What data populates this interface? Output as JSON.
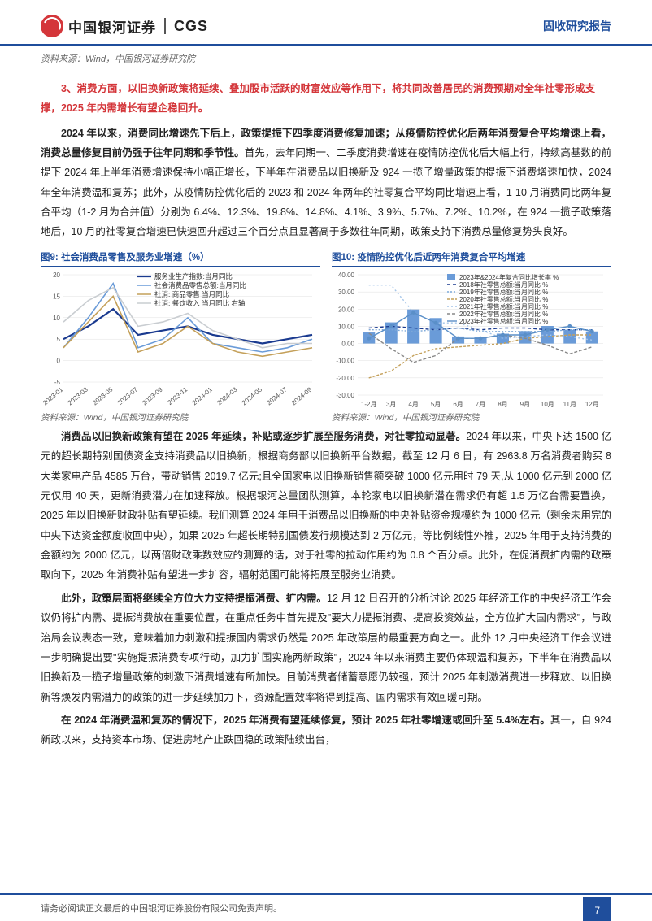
{
  "header": {
    "logo_cn": "中国银河证券",
    "logo_en": "CGS",
    "report_type": "固收研究报告"
  },
  "source_top": "资料来源：Wind，中国银河证券研究院",
  "section3": "3、消费方面，以旧换新政策将延续、叠加股市活跃的财富效应等作用下，将共同改善居民的消费预期对全年社零形成支撑，2025 年内需增长有望企稳回升。",
  "p1_bold": "2024 年以来，消费同比增速先下后上，政策提振下四季度消费修复加速；从疫情防控优化后两年消费复合平均增速上看，消费总量修复目前仍强于往年同期和季节性。",
  "p1_rest": "首先，去年同期一、二季度消费增速在疫情防控优化后大幅上行，持续高基数的前提下 2024 年上半年消费增速保持小幅正增长，下半年在消费品以旧换新及 924 一揽子增量政策的提振下消费增速加快，2024 年全年消费温和复苏；此外，从疫情防控优化后的 2023 和 2024 年两年的社零复合平均同比增速上看，1-10 月消费同比两年复合平均（1-2 月为合并值）分别为 6.4%、12.3%、19.8%、14.8%、4.1%、3.9%、5.7%、7.2%、10.2%，在 924 一揽子政策落地后，10 月的社零复合增速已快速回升超过三个百分点且显著高于多数往年同期，政策支持下消费总量修复势头良好。",
  "chart9": {
    "title": "图9: 社会消费品零售及服务业增速（%）",
    "type": "line",
    "background_color": "#ffffff",
    "grid_color": "#e0e0e0",
    "ylim": [
      -5,
      20
    ],
    "yticks": [
      -5,
      0,
      5,
      10,
      15,
      20
    ],
    "xlabels": [
      "2023-01",
      "2023-03",
      "2023-05",
      "2023-07",
      "2023-09",
      "2023-11",
      "2024-01",
      "2024-03",
      "2024-05",
      "2024-07",
      "2024-09"
    ],
    "series": [
      {
        "name": "服务业生产指数:当月同比",
        "color": "#1a3a8f",
        "width": 2.2,
        "data": [
          5,
          8,
          12,
          6,
          7,
          8,
          6,
          5,
          4,
          5,
          6
        ]
      },
      {
        "name": "社会消费品零售总额:当月同比",
        "color": "#6a9bd8",
        "width": 1.6,
        "data": [
          3,
          10,
          18,
          3,
          5,
          10,
          4,
          3,
          2,
          3,
          5
        ]
      },
      {
        "name": "社消: 商品零售 当月同比",
        "color": "#c4a05a",
        "width": 1.6,
        "data": [
          3,
          9,
          15,
          2,
          4,
          8,
          4,
          2,
          1,
          2,
          3
        ]
      },
      {
        "name": "社消: 餐饮收入 当月同比 右轴",
        "color": "#c9cdd1",
        "width": 1.6,
        "data": [
          9,
          14,
          17,
          8,
          9,
          11,
          7,
          5,
          3,
          4,
          4
        ]
      }
    ],
    "axis_fontsize": 8,
    "legend_fontsize": 8.5,
    "source": "资料来源：Wind，中国银河证券研究院"
  },
  "chart10": {
    "title": "图10: 疫情防控优化后近两年消费复合平均增速",
    "type": "combo",
    "background_color": "#ffffff",
    "grid_color": "#e0e0e0",
    "ylim": [
      -30,
      40
    ],
    "yticks": [
      -30,
      -20,
      -10,
      0,
      10,
      20,
      30,
      40
    ],
    "xlabels": [
      "1-2月",
      "3月",
      "4月",
      "5月",
      "6月",
      "7月",
      "8月",
      "9月",
      "10月",
      "11月",
      "12月"
    ],
    "bars": {
      "name": "2023年&2024年复合同比增长率 %",
      "color": "#6a9bd8",
      "data": [
        6.4,
        12.3,
        19.8,
        14.8,
        4.1,
        3.9,
        5.7,
        7.2,
        10.2,
        8,
        7
      ]
    },
    "lines": [
      {
        "name": "2018年社零售总额:当月同比 %",
        "color": "#1a3a8f",
        "dash": "4 3",
        "data": [
          9,
          10,
          9,
          8,
          9,
          8,
          9,
          9,
          8,
          8,
          8
        ]
      },
      {
        "name": "2019年社零售总额:当月同比 %",
        "color": "#7ca8d8",
        "dash": "2 2",
        "data": [
          8,
          8,
          7,
          8,
          9,
          7,
          7,
          7,
          7,
          8,
          8
        ]
      },
      {
        "name": "2020年社零售总额:当月同比 %",
        "color": "#c4a05a",
        "dash": "3 2",
        "data": [
          -20,
          -16,
          -7,
          -3,
          -2,
          -1,
          0,
          3,
          4,
          5,
          5
        ]
      },
      {
        "name": "2021年社零售总额:当月同比 %",
        "color": "#a3c4e8",
        "dash": "2 3",
        "data": [
          34,
          34,
          18,
          12,
          12,
          8,
          3,
          4,
          5,
          4,
          2
        ]
      },
      {
        "name": "2022年社零售总额:当月同比 %",
        "color": "#888",
        "dash": "4 2",
        "data": [
          6,
          -3,
          -11,
          -7,
          3,
          3,
          5,
          3,
          -1,
          -6,
          -2
        ]
      },
      {
        "name": "2023年社零售总额:当月同比 %",
        "color": "#5a8fc8",
        "dash": "",
        "data": [
          3,
          10,
          18,
          12,
          3,
          3,
          5,
          5,
          8,
          10,
          7
        ],
        "marker": true
      }
    ],
    "axis_fontsize": 8,
    "legend_fontsize": 8,
    "source": "资料来源：Wind，中国银河证券研究院"
  },
  "p2_bold": "消费品以旧换新政策有望在 2025 年延续，补贴或逐步扩展至服务消费，对社零拉动显著。",
  "p2_rest": "2024 年以来，中央下达 1500 亿元的超长期特别国债资金支持消费品以旧换新，根据商务部以旧换新平台数据，截至 12 月 6 日，有 2963.8 万名消费者购买 8 大类家电产品 4585 万台，带动销售 2019.7 亿元;且全国家电以旧换新销售额突破 1000 亿元用时 79 天,从 1000 亿元到 2000 亿元仅用 40 天，更新消费潜力在加速释放。根据银河总量团队测算，本轮家电以旧换新潜在需求仍有超 1.5 万亿台需要置换，2025 年以旧换新财政补贴有望延续。我们测算 2024 年用于消费品以旧换新的中央补贴资金规模约为 1000 亿元（剩余未用完的中央下达资金额度收回中央），如果 2025 年超长期特别国债发行规模达到 2 万亿元，等比例线性外推，2025 年用于支持消费的金额约为 2000 亿元，以两倍财政乘数效应的测算的话，对于社零的拉动作用约为 0.8 个百分点。此外，在促消费扩内需的政策取向下，2025 年消费补贴有望进一步扩容，辐射范围可能将拓展至服务业消费。",
  "p3_bold": "此外，政策层面将继续全方位大力支持提振消费、扩内需。",
  "p3_rest": "12 月 12 日召开的分析讨论 2025 年经济工作的中央经济工作会议仍将扩内需、提振消费放在重要位置，在重点任务中首先提及\"要大力提振消费、提高投资效益，全方位扩大国内需求\"，与政治局会议表态一致，意味着加力刺激和提振国内需求仍然是 2025 年政策层的最重要方向之一。此外 12 月中央经济工作会议进一步明确提出要\"实施提振消费专项行动，加力扩围实施两新政策\"，2024 年以来消费主要仍体现温和复苏，下半年在消费品以旧换新及一揽子增量政策的刺激下消费增速有所加快。目前消费者储蓄意愿仍较强，预计 2025 年刺激消费进一步释放、以旧换新等焕发内需潜力的政策的进一步延续加力下，资源配置效率将得到提高、国内需求有效回暖可期。",
  "p4_bold": "在 2024 年消费温和复苏的情况下，2025 年消费有望延续修复，预计 2025 年社零增速或回升至 5.4%左右。",
  "p4_rest": "其一，自 924 新政以来，支持资本市场、促进房地产止跌回稳的政策陆续出台，",
  "footer": {
    "text": "请务必阅读正文最后的中国银河证券股份有限公司免责声明。",
    "page": "7"
  }
}
